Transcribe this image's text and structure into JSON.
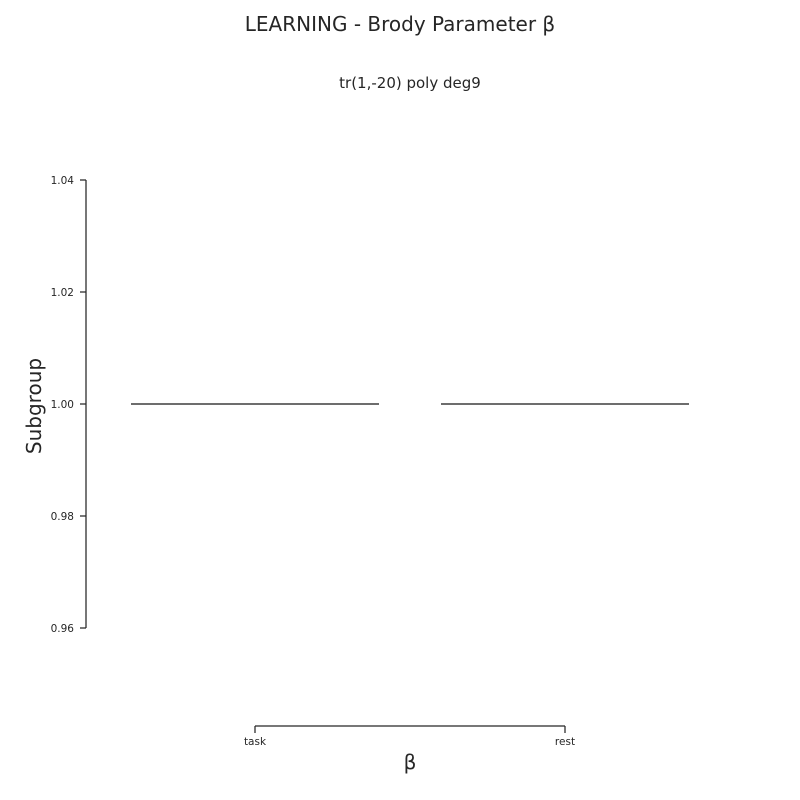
{
  "chart_data": {
    "type": "box",
    "title": "LEARNING - Brody Parameter β",
    "subtitle": "tr(1,-20) poly deg9",
    "xlabel": "β",
    "ylabel": "Subgroup",
    "categories": [
      "task",
      "rest"
    ],
    "values": [
      1.0,
      1.0
    ],
    "ylim": [
      0.96,
      1.04
    ],
    "yticks": [
      0.96,
      0.98,
      1.0,
      1.02,
      1.04
    ],
    "ytick_labels": [
      "0.96",
      "0.98",
      "1.00",
      "1.02",
      "1.04"
    ],
    "grid": false,
    "legend": "none"
  },
  "colors": {
    "text": "#262626",
    "median_line": "#3d3d3d"
  }
}
